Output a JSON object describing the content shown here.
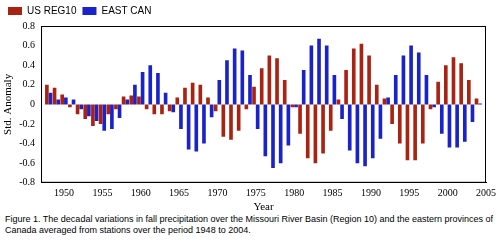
{
  "chart_data": {
    "type": "bar",
    "caption": "Figure 1.  The decadal variations in fall precipitation over the Missouri River Basin (Region 10) and the eastern provinces of Canada averaged from stations over the period 1948 to 2004.",
    "x_label": "Year",
    "y_label": "Std. Anomaly",
    "x": [
      1948,
      1949,
      1950,
      1951,
      1952,
      1953,
      1954,
      1955,
      1956,
      1957,
      1958,
      1959,
      1960,
      1961,
      1962,
      1963,
      1964,
      1965,
      1966,
      1967,
      1968,
      1969,
      1970,
      1971,
      1972,
      1973,
      1974,
      1975,
      1976,
      1977,
      1978,
      1979,
      1980,
      1981,
      1982,
      1983,
      1984,
      1985,
      1986,
      1987,
      1988,
      1989,
      1990,
      1991,
      1992,
      1993,
      1994,
      1995,
      1996,
      1997,
      1998,
      1999,
      2000,
      2001,
      2002,
      2003,
      2004
    ],
    "series": [
      {
        "name": "US REG10",
        "color": "#aa2211",
        "values": [
          0.2,
          0.17,
          0.1,
          -0.03,
          -0.1,
          -0.15,
          -0.22,
          -0.2,
          -0.1,
          -0.05,
          0.08,
          0.09,
          0.08,
          -0.05,
          -0.1,
          -0.1,
          -0.07,
          0.07,
          0.17,
          0.22,
          0.2,
          0.07,
          -0.07,
          -0.33,
          -0.36,
          -0.27,
          -0.05,
          0.18,
          0.37,
          0.5,
          0.47,
          0.25,
          -0.03,
          -0.3,
          -0.55,
          -0.6,
          -0.5,
          -0.27,
          0.05,
          0.35,
          0.57,
          0.62,
          0.5,
          0.2,
          0.06,
          -0.2,
          -0.4,
          -0.57,
          -0.57,
          -0.4,
          -0.05,
          0.23,
          0.4,
          0.48,
          0.42,
          0.25,
          0.06
        ]
      },
      {
        "name": "EAST CAN",
        "color": "#1a22cc",
        "values": [
          0.12,
          0.05,
          0.07,
          0.05,
          -0.05,
          -0.12,
          -0.17,
          -0.27,
          -0.25,
          -0.14,
          0.05,
          0.2,
          0.33,
          0.4,
          0.32,
          0.12,
          -0.08,
          -0.25,
          -0.46,
          -0.48,
          -0.4,
          -0.13,
          0.25,
          0.45,
          0.57,
          0.55,
          0.3,
          -0.25,
          -0.53,
          -0.65,
          -0.6,
          -0.42,
          -0.03,
          0.35,
          0.6,
          0.67,
          0.6,
          0.3,
          -0.15,
          -0.47,
          -0.6,
          -0.63,
          -0.55,
          -0.35,
          0.07,
          0.3,
          0.5,
          0.6,
          0.53,
          0.3,
          -0.03,
          -0.3,
          -0.44,
          -0.44,
          -0.38,
          -0.18,
          0.01
        ]
      }
    ],
    "xlim": [
      1947,
      2005
    ],
    "xticks": [
      1950,
      1955,
      1960,
      1965,
      1970,
      1975,
      1980,
      1985,
      1990,
      1995,
      2000,
      2005
    ],
    "ylim": [
      -0.8,
      0.8
    ],
    "yticks": [
      -0.8,
      -0.6,
      -0.4,
      -0.2,
      0,
      0.2,
      0.4,
      0.6,
      0.8
    ],
    "grid": false,
    "legend": "upper left"
  }
}
